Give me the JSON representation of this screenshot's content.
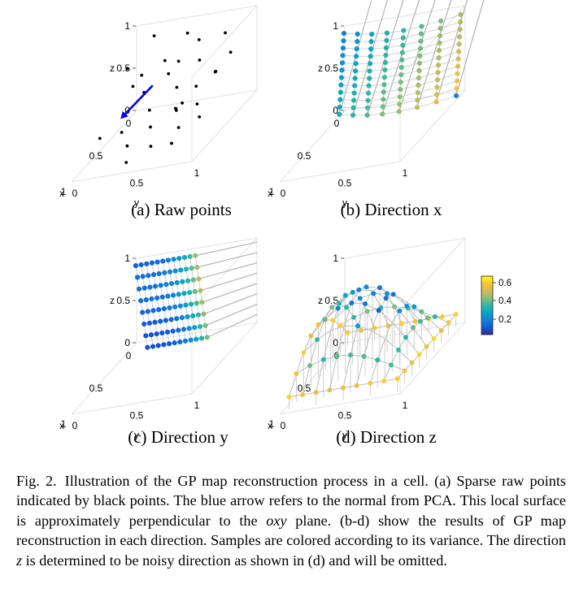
{
  "panels": [
    {
      "id": "a",
      "caption": "(a) Raw points",
      "mode": "raw"
    },
    {
      "id": "b",
      "caption": "(b) Direction x",
      "mode": "x"
    },
    {
      "id": "c",
      "caption": "(c) Direction y",
      "mode": "y"
    },
    {
      "id": "d",
      "caption": "(d) Direction z",
      "mode": "z"
    }
  ],
  "axes": {
    "xlabel": "x",
    "ylabel": "y",
    "zlabel": "z",
    "z_ticks": [
      "0",
      "0.5",
      "1"
    ],
    "x_ticks": [
      "0",
      "0.5",
      "1"
    ],
    "y_ticks": [
      "0",
      "0.5",
      "1"
    ]
  },
  "colorbar": {
    "ticks": [
      "0.6",
      "0.4",
      "0.2"
    ],
    "colors": [
      "#352a87",
      "#0f5cdd",
      "#1481d6",
      "#06a4ca",
      "#2eb7a4",
      "#87bf77",
      "#d1bb59",
      "#fec832",
      "#f9fb0e"
    ]
  },
  "raw_points_color": "#000000",
  "arrow_color": "#0000ee",
  "grid_color": "#b3b3b3",
  "caption": {
    "label": "Fig. 2.",
    "text_1": "Illustration of the GP map reconstruction process in a cell. (a) Sparse raw points indicated by black points. The blue arrow refers to the normal from PCA. This local surface is approximately perpendicular to the ",
    "math_oxy": "oxy",
    "text_2": " plane. (b-d) show the results of GP map reconstruction in each direction. Samples are colored according to its variance. The direction ",
    "math_z": "z",
    "text_3": " is determined to be noisy direction as shown in (d) and will be omitted."
  }
}
